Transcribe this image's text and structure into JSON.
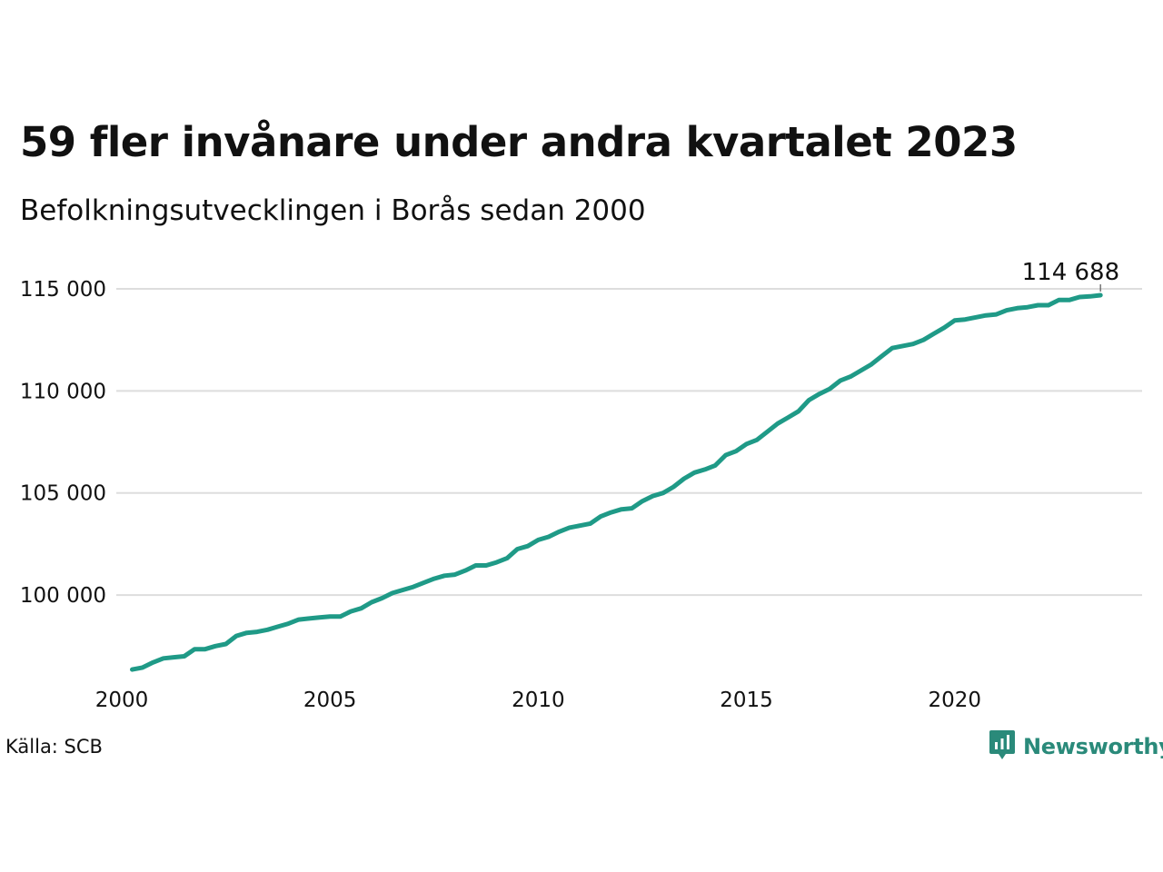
{
  "title": "59 fler invånare under andra kvartalet 2023",
  "subtitle": "Befolkningsutvecklingen i Borås sedan 2000",
  "source": "Källa: SCB",
  "brand": {
    "name": "Newsworthy",
    "icon": "newsworthy-logo-icon",
    "color": "#2a8a7a"
  },
  "chart_data": {
    "type": "line",
    "title": "59 fler invånare under andra kvartalet 2023",
    "subtitle": "Befolkningsutvecklingen i Borås sedan 2000",
    "xlabel": "",
    "ylabel": "",
    "xlim": [
      2000,
      2024.5
    ],
    "ylim": [
      96000,
      115800
    ],
    "x_ticks": [
      2000,
      2005,
      2010,
      2015,
      2020
    ],
    "x_tick_labels": [
      "2000",
      "2005",
      "2010",
      "2015",
      "2020"
    ],
    "y_ticks": [
      100000,
      105000,
      110000,
      115000
    ],
    "y_tick_labels": [
      "100 000",
      "105 000",
      "110 000",
      "115 000"
    ],
    "grid": "horizontal",
    "line_color": "#1f9a87",
    "end_label": "114 688",
    "series": [
      {
        "x": [
          2000.25,
          2000.5,
          2000.75,
          2001.0,
          2001.25,
          2001.5,
          2001.75,
          2002.0,
          2002.25,
          2002.5,
          2002.75,
          2003.0,
          2003.25,
          2003.5,
          2003.75,
          2004.0,
          2004.25,
          2004.5,
          2004.75,
          2005.0,
          2005.25,
          2005.5,
          2005.75,
          2006.0,
          2006.25,
          2006.5,
          2006.75,
          2007.0,
          2007.25,
          2007.5,
          2007.75,
          2008.0,
          2008.25,
          2008.5,
          2008.75,
          2009.0,
          2009.25,
          2009.5,
          2009.75,
          2010.0,
          2010.25,
          2010.5,
          2010.75,
          2011.0,
          2011.25,
          2011.5,
          2011.75,
          2012.0,
          2012.25,
          2012.5,
          2012.75,
          2013.0,
          2013.25,
          2013.5,
          2013.75,
          2014.0,
          2014.25,
          2014.5,
          2014.75,
          2015.0,
          2015.25,
          2015.5,
          2015.75,
          2016.0,
          2016.25,
          2016.5,
          2016.75,
          2017.0,
          2017.25,
          2017.5,
          2017.75,
          2018.0,
          2018.25,
          2018.5,
          2018.75,
          2019.0,
          2019.25,
          2019.5,
          2019.75,
          2020.0,
          2020.25,
          2020.5,
          2020.75,
          2021.0,
          2021.25,
          2021.5,
          2021.75,
          2022.0,
          2022.25,
          2022.5,
          2022.75,
          2023.0,
          2023.25,
          2023.5
        ],
        "y": [
          96350,
          96450,
          96700,
          96900,
          96950,
          97000,
          97350,
          97350,
          97500,
          97600,
          98000,
          98150,
          98200,
          98300,
          98450,
          98600,
          98800,
          98850,
          98900,
          98950,
          98950,
          99200,
          99350,
          99650,
          99850,
          100100,
          100250,
          100400,
          100600,
          100800,
          100950,
          101000,
          101200,
          101450,
          101450,
          101600,
          101800,
          102250,
          102400,
          102700,
          102850,
          103100,
          103300,
          103400,
          103500,
          103850,
          104050,
          104200,
          104250,
          104600,
          104850,
          105000,
          105300,
          105700,
          106000,
          106150,
          106350,
          106850,
          107050,
          107400,
          107600,
          108000,
          108400,
          108700,
          109000,
          109550,
          109850,
          110100,
          110500,
          110700,
          111000,
          111300,
          111700,
          112100,
          112200,
          112300,
          112500,
          112800,
          113100,
          113450,
          113500,
          113600,
          113700,
          113750,
          113950,
          114050,
          114100,
          114200,
          114200,
          114450,
          114450,
          114600,
          114629,
          114688
        ]
      }
    ]
  }
}
